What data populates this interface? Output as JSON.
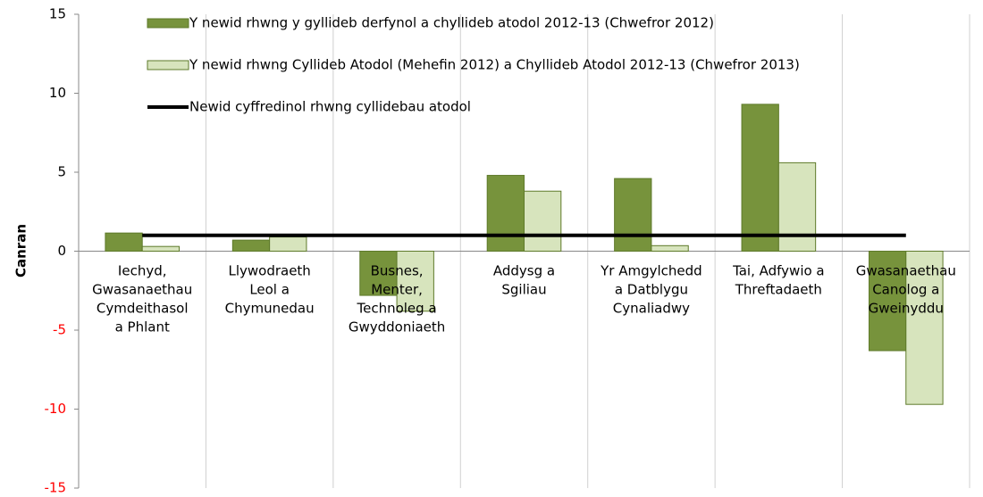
{
  "chart_data": {
    "type": "bar",
    "y_label": "Canran",
    "categories": [
      "Iechyd,\nGwasanaethau\nCymdeithasol\na Phlant",
      "Llywodraeth\nLeol a\nChymunedau",
      "Busnes,\nMenter,\nTechnoleg a\nGwyddoniaeth",
      "Addysg a\nSgiliau",
      "Yr Amgylchedd\na Datblygu\nCynaliadwy",
      "Tai, Adfywio a\nThreftadaeth",
      "Gwasanaethau\nCanolog a\nGweinyddu"
    ],
    "series": [
      {
        "name": "Y newid rhwng y gyllideb derfynol a chyllideb atodol 2012-13 (Chwefror 2012)",
        "color": "#77933c",
        "type": "bar",
        "values": [
          1.15,
          0.7,
          -2.8,
          4.8,
          4.6,
          9.3,
          -6.3
        ]
      },
      {
        "name": "Y newid rhwng Cyllideb Atodol (Mehefin 2012) a Chyllideb Atodol 2012-13 (Chwefror 2013)",
        "color": "#d7e4bd",
        "type": "bar",
        "values": [
          0.3,
          0.9,
          -3.8,
          3.8,
          0.35,
          5.6,
          -9.7
        ]
      },
      {
        "name": "Newid cyffredinol rhwng cyllidebau atodol",
        "color": "#000000",
        "type": "line",
        "values": [
          1,
          1,
          1,
          1,
          1,
          1,
          1
        ]
      }
    ],
    "ylim": [
      -15,
      15
    ],
    "yticks": [
      -15,
      -10,
      -5,
      0,
      5,
      10,
      15
    ],
    "negative_tick_color": "#ff0000"
  }
}
